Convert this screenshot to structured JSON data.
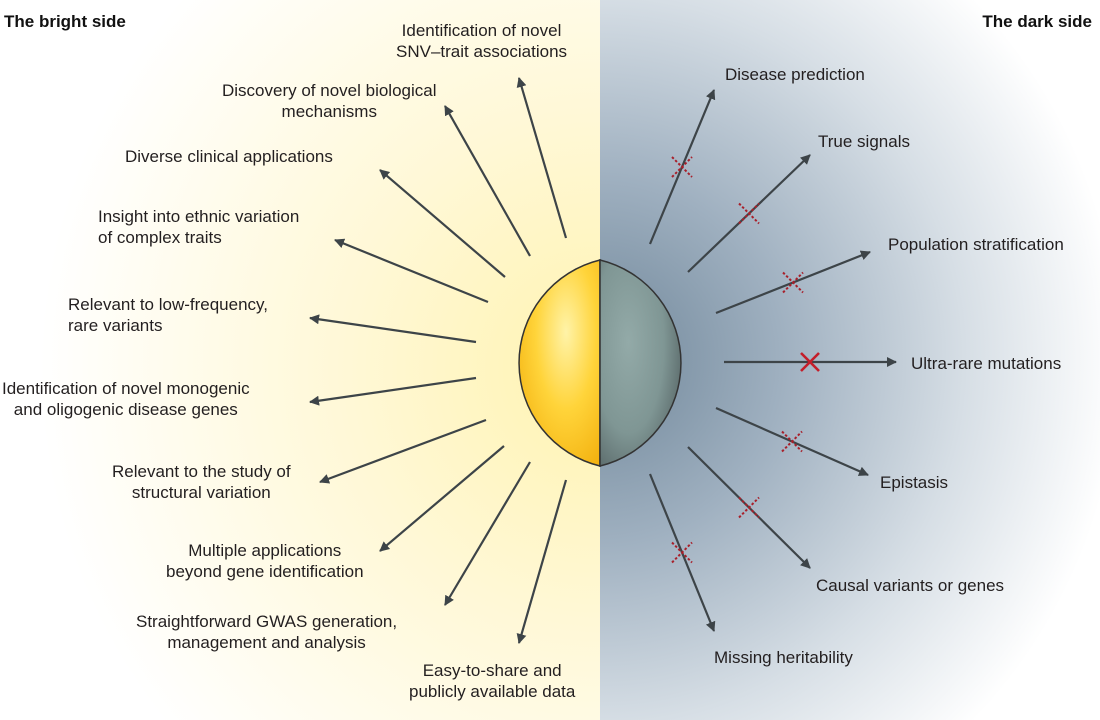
{
  "bright": {
    "title": "The bright side",
    "labels": [
      {
        "l1": "Identification of novel",
        "l2": "SNV–trait associations"
      },
      {
        "l1": "Discovery of novel biological",
        "l2": "mechanisms"
      },
      {
        "l1": "Diverse clinical applications",
        "l2": ""
      },
      {
        "l1": "Insight into ethnic variation",
        "l2": "of complex traits"
      },
      {
        "l1": "Relevant to low-frequency,",
        "l2": "rare variants"
      },
      {
        "l1": "Identification of novel monogenic",
        "l2": "and oligogenic disease genes"
      },
      {
        "l1": "Relevant to the study of",
        "l2": "structural variation"
      },
      {
        "l1": "Multiple applications",
        "l2": "beyond gene identification"
      },
      {
        "l1": "Straightforward GWAS generation,",
        "l2": "management and analysis"
      },
      {
        "l1": "Easy-to-share and",
        "l2": "publicly available data"
      }
    ]
  },
  "dark": {
    "title": "The dark side",
    "labels": [
      {
        "l1": "Disease prediction"
      },
      {
        "l1": "True signals"
      },
      {
        "l1": "Population stratification"
      },
      {
        "l1": "Ultra-rare mutations"
      },
      {
        "l1": "Epistasis"
      },
      {
        "l1": "Causal variants or genes"
      },
      {
        "l1": "Missing heritability"
      }
    ]
  },
  "colors": {
    "sun": "#f7c21c",
    "sun_light": "#fff3a8",
    "dark_sphere": "#8fa4a8",
    "arrow": "#3d4448",
    "cross_dashed": "#a8202b",
    "cross_solid": "#c41e2a",
    "dark_bg": "#6f8699",
    "bright_bg": "#fff6c4"
  },
  "icons": {
    "dashed_cross": "dashed-x-icon",
    "solid_cross": "x-icon"
  }
}
